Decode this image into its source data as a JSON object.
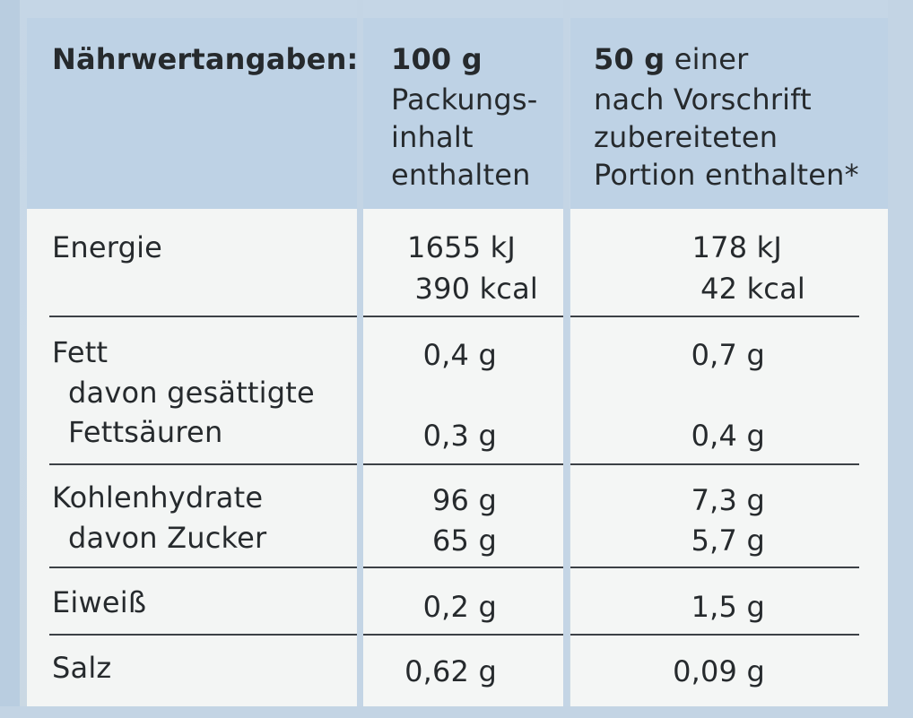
{
  "header": {
    "label": "Nährwertangaben:",
    "col1_amount": "100 g",
    "col1_lines": [
      "Packungs-",
      "inhalt",
      "enthalten"
    ],
    "col2_amount": "50 g",
    "col2_first_rest": " einer",
    "col2_lines": [
      "nach Vorschrift",
      "zubereiteten",
      "Portion enthalten*"
    ]
  },
  "rows": {
    "energie": {
      "label": "Energie",
      "c1a": "1655 kJ",
      "c1b": "390 kcal",
      "c2a": "178 kJ",
      "c2b": "42 kcal"
    },
    "fett": {
      "label": "Fett",
      "c1": "0,4 g",
      "c2": "0,7 g"
    },
    "fett_sub1": {
      "label": "davon gesättigte"
    },
    "fett_sub2": {
      "label": "Fettsäuren",
      "c1": "0,3 g",
      "c2": "0,4 g"
    },
    "kh": {
      "label": "Kohlenhydrate",
      "c1": "96 g",
      "c2": "7,3 g"
    },
    "zucker": {
      "label": "davon Zucker",
      "c1": "65 g",
      "c2": "5,7 g"
    },
    "eiweiss": {
      "label": "Eiweiß",
      "c1": "0,2 g",
      "c2": "1,5 g"
    },
    "salz": {
      "label": "Salz",
      "c1": "0,62 g",
      "c2": "0,09 g"
    }
  },
  "colors": {
    "header_band": "#bed2e5",
    "cell_background": "#f3f5f4",
    "text": "#262a2d"
  }
}
